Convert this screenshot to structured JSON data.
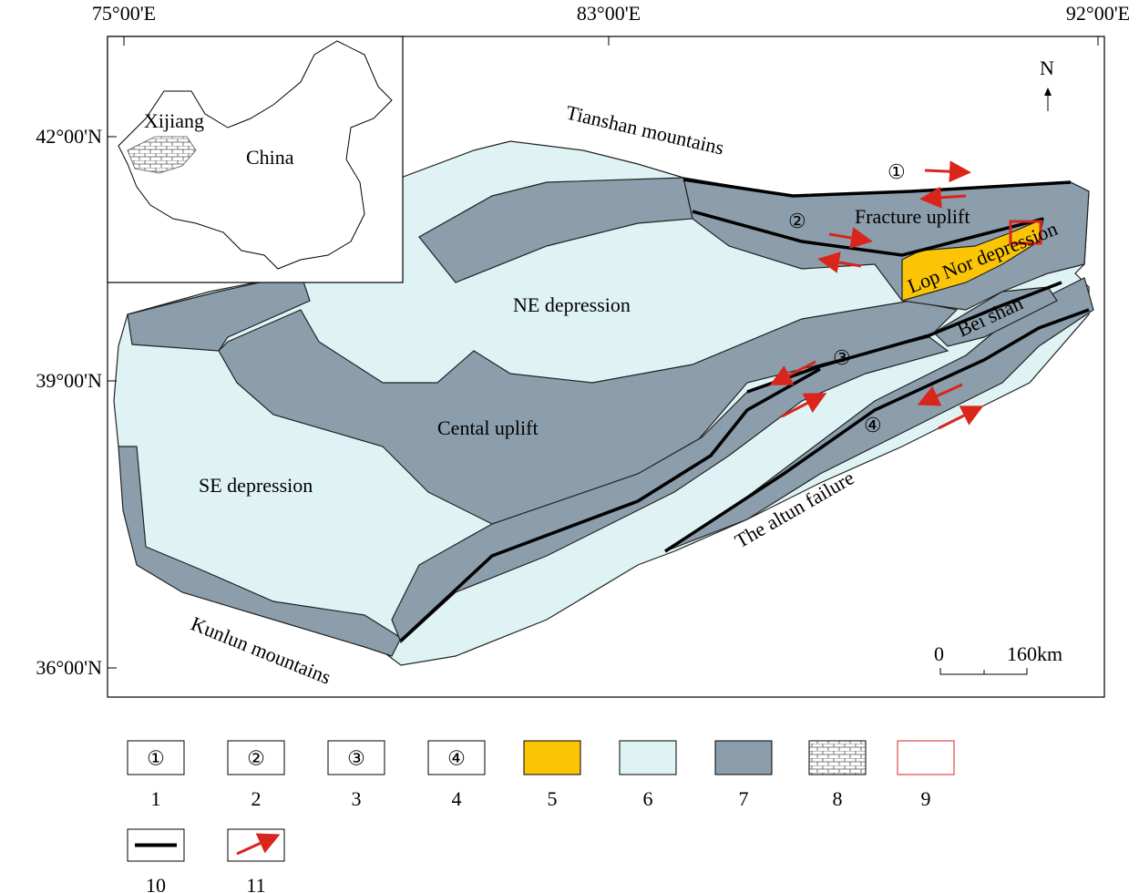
{
  "axes": {
    "longitude": [
      "75°00'E",
      "83°00'E",
      "92°00'E"
    ],
    "latitude": [
      "42°00'N",
      "39°00'N",
      "36°00'N"
    ]
  },
  "inset": {
    "region": "Xijiang",
    "country": "China"
  },
  "regions": {
    "tianshan": "Tianshan mountains",
    "fracture": "Fracture uplift",
    "lopnor": "Lop Nor depression",
    "ne": "NE depression",
    "beishan": "Bei shan",
    "central": "Cental uplift",
    "se": "SE depression",
    "altun": "The altun failure",
    "kunlun": "Kunlun mountains"
  },
  "faults": [
    "①",
    "②",
    "③",
    "④"
  ],
  "north": "N",
  "scale": [
    "0",
    "160km"
  ],
  "legend": [
    {
      "symbol": "①",
      "number": "1"
    },
    {
      "symbol": "②",
      "number": "2"
    },
    {
      "symbol": "③",
      "number": "3"
    },
    {
      "symbol": "④",
      "number": "4"
    },
    {
      "number": "5"
    },
    {
      "number": "6"
    },
    {
      "number": "7"
    },
    {
      "number": "8"
    },
    {
      "number": "9"
    },
    {
      "number": "10"
    },
    {
      "number": "11"
    }
  ]
}
